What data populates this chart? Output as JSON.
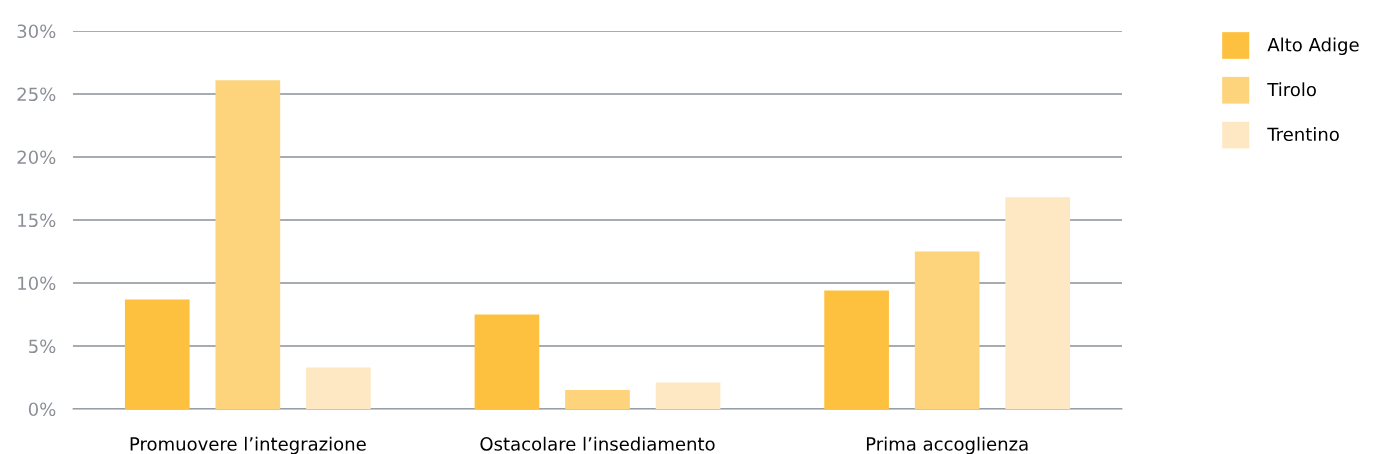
{
  "chart_data": {
    "type": "bar",
    "categories": [
      "Promuovere l’integrazione",
      "Ostacolare l’insediamento",
      "Prima accoglienza"
    ],
    "series": [
      {
        "name": "Alto Adige",
        "color": "#fdc13f",
        "values": [
          8.7,
          7.5,
          9.4
        ]
      },
      {
        "name": "Tirolo",
        "color": "#fdd37c",
        "values": [
          26.1,
          1.5,
          12.5
        ]
      },
      {
        "name": "Trentino",
        "color": "#fde8c3",
        "values": [
          3.3,
          2.1,
          16.8
        ]
      }
    ],
    "ylim": [
      0,
      30
    ],
    "yticks": [
      {
        "value": 0,
        "label": "0%"
      },
      {
        "value": 5,
        "label": "5%"
      },
      {
        "value": 10,
        "label": "10%"
      },
      {
        "value": 15,
        "label": "15%"
      },
      {
        "value": 20,
        "label": "20%"
      },
      {
        "value": 25,
        "label": "25%"
      },
      {
        "value": 30,
        "label": "30%"
      }
    ],
    "grid": "y",
    "legend": "right"
  }
}
